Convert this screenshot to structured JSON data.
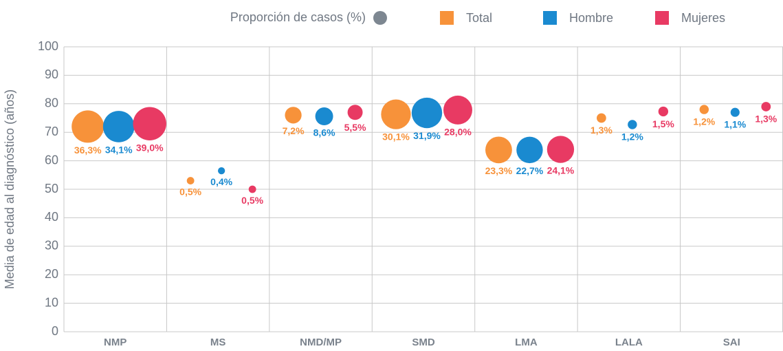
{
  "chart_data": {
    "type": "bubble",
    "y_label": "Media de edad al diagnóstico (años)",
    "size_label": "Proporción de casos (%)",
    "size_color": "#7d8791",
    "categories": [
      "NMP",
      "MS",
      "NMD/MP",
      "SMD",
      "LMA",
      "LALA",
      "SAI"
    ],
    "series": [
      {
        "name": "Total",
        "color": "#f7923a",
        "values": [
          72,
          53,
          76,
          76.3,
          63.8,
          75,
          78
        ],
        "sizes": [
          36.3,
          0.5,
          7.2,
          30.1,
          23.3,
          1.3,
          1.2
        ],
        "value_labels": [
          "36,3%",
          "0,5%",
          "7,2%",
          "30,1%",
          "23,3%",
          "1,3%",
          "1,2%"
        ]
      },
      {
        "name": "Hombre",
        "color": "#1a8ad0",
        "values": [
          72,
          56.5,
          75.6,
          76.8,
          63.8,
          72.7,
          77
        ],
        "sizes": [
          34.1,
          0.4,
          8.6,
          31.9,
          22.7,
          1.2,
          1.1
        ],
        "value_labels": [
          "34,1%",
          "0,4%",
          "8,6%",
          "31,9%",
          "22,7%",
          "1,2%",
          "1,1%"
        ]
      },
      {
        "name": "Mujeres",
        "color": "#e83a63",
        "values": [
          73,
          50,
          77,
          77.8,
          64,
          77.3,
          79
        ],
        "sizes": [
          39.0,
          0.5,
          5.5,
          28.0,
          24.1,
          1.5,
          1.3
        ],
        "value_labels": [
          "39,0%",
          "0,5%",
          "5,5%",
          "28,0%",
          "24,1%",
          "1,5%",
          "1,3%"
        ]
      }
    ],
    "ylim": [
      0,
      100
    ],
    "yticks": [
      0,
      10,
      20,
      30,
      40,
      50,
      60,
      70,
      80,
      90,
      100
    ],
    "grid": true
  }
}
